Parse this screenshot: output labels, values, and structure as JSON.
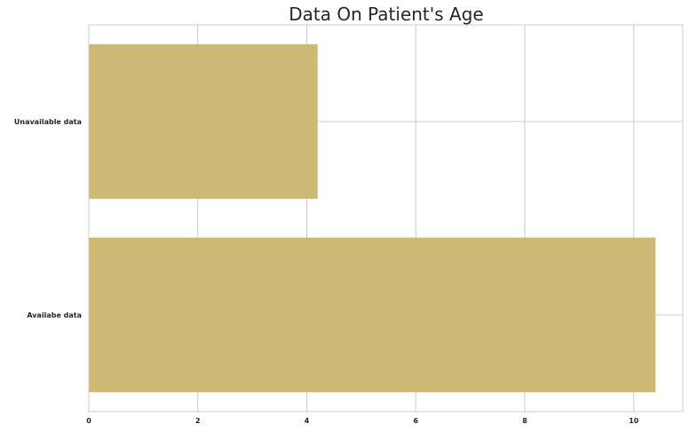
{
  "chart_data": {
    "type": "bar",
    "orientation": "horizontal",
    "title": "Data On Patient's Age",
    "xlabel": "",
    "ylabel": "",
    "categories": [
      "Unavailable data",
      "Availabe data"
    ],
    "values": [
      4.2,
      10.4
    ],
    "xlim": [
      0,
      10.9
    ],
    "xticks": [
      0,
      2,
      4,
      6,
      8,
      10
    ],
    "grid": true,
    "bar_color": "#ccb974"
  }
}
